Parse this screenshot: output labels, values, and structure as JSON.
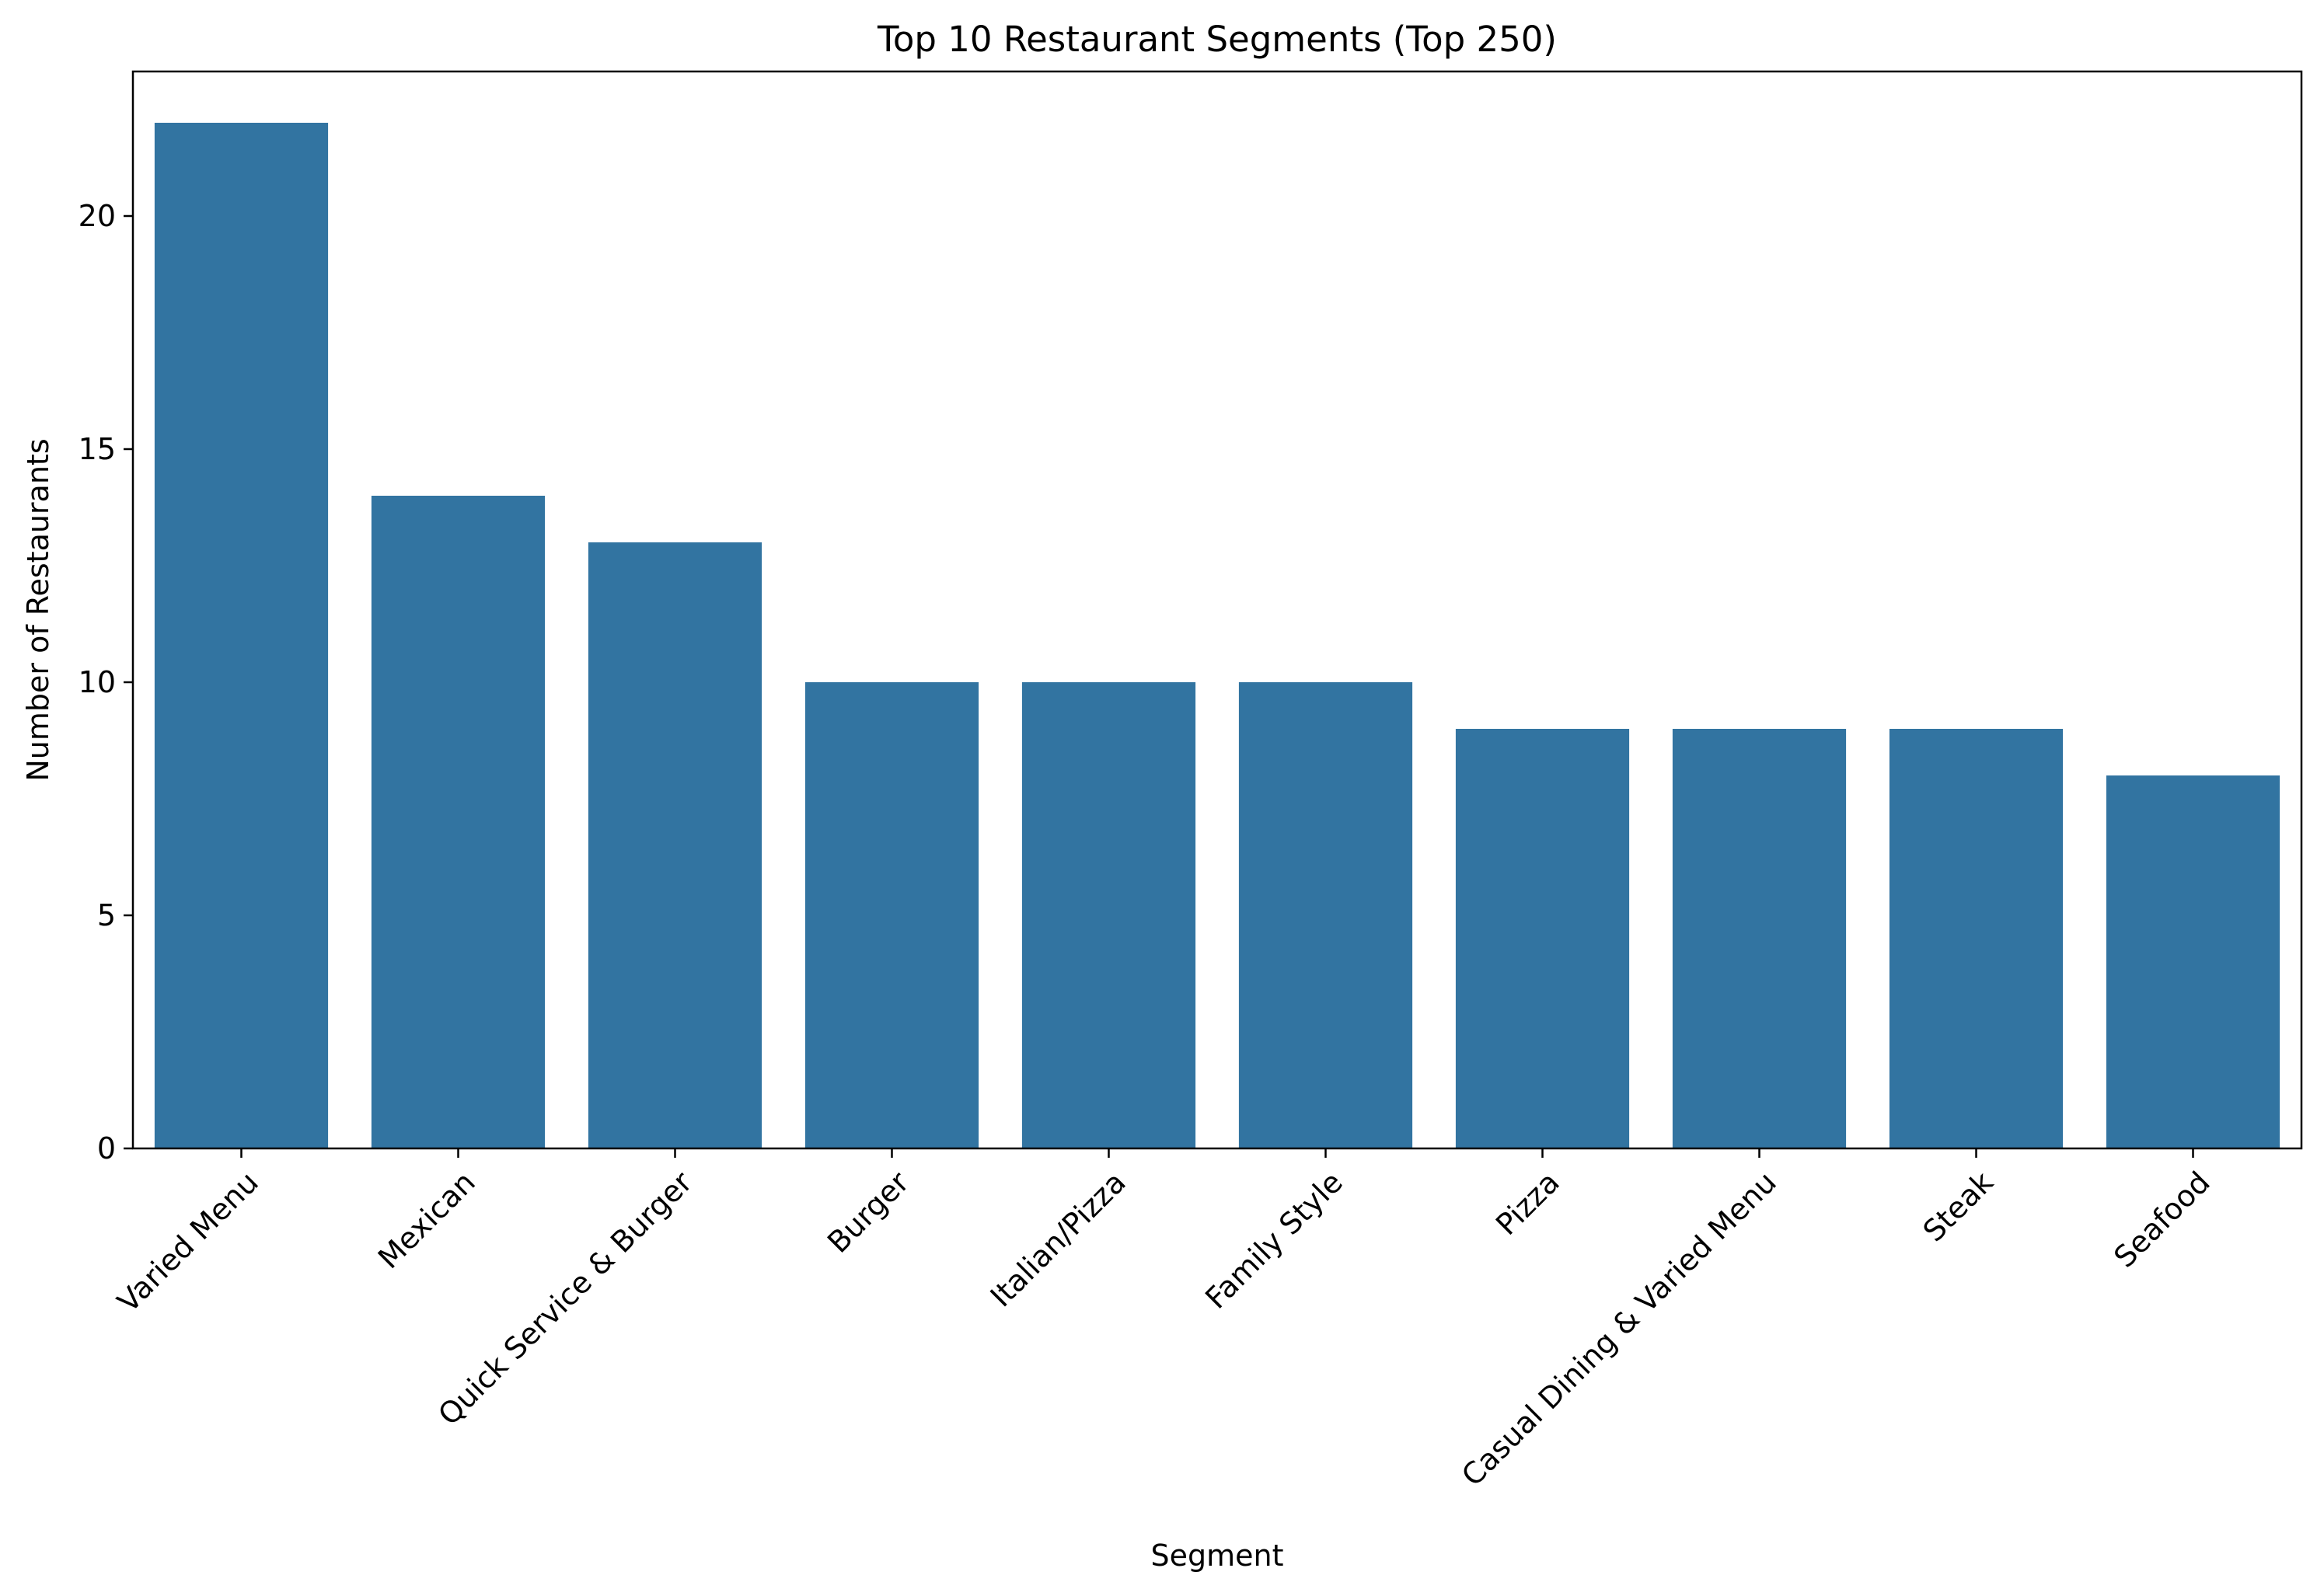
{
  "chart_data": {
    "type": "bar",
    "title": "Top 10 Restaurant Segments (Top 250)",
    "xlabel": "Segment",
    "ylabel": "Number of Restaurants",
    "categories": [
      "Varied Menu",
      "Mexican",
      "Quick Service & Burger",
      "Burger",
      "Italian/Pizza",
      "Family Style",
      "Pizza",
      "Casual Dining & Varied Menu",
      "Steak",
      "Seafood"
    ],
    "values": [
      22,
      14,
      13,
      10,
      10,
      10,
      9,
      9,
      9,
      8
    ],
    "ylim": [
      0,
      23.1
    ],
    "yticks": [
      0,
      5,
      10,
      15,
      20
    ],
    "grid": false,
    "legend": "none",
    "bar_color": "#3274a1",
    "x_tick_rotation": "45 degrees"
  }
}
